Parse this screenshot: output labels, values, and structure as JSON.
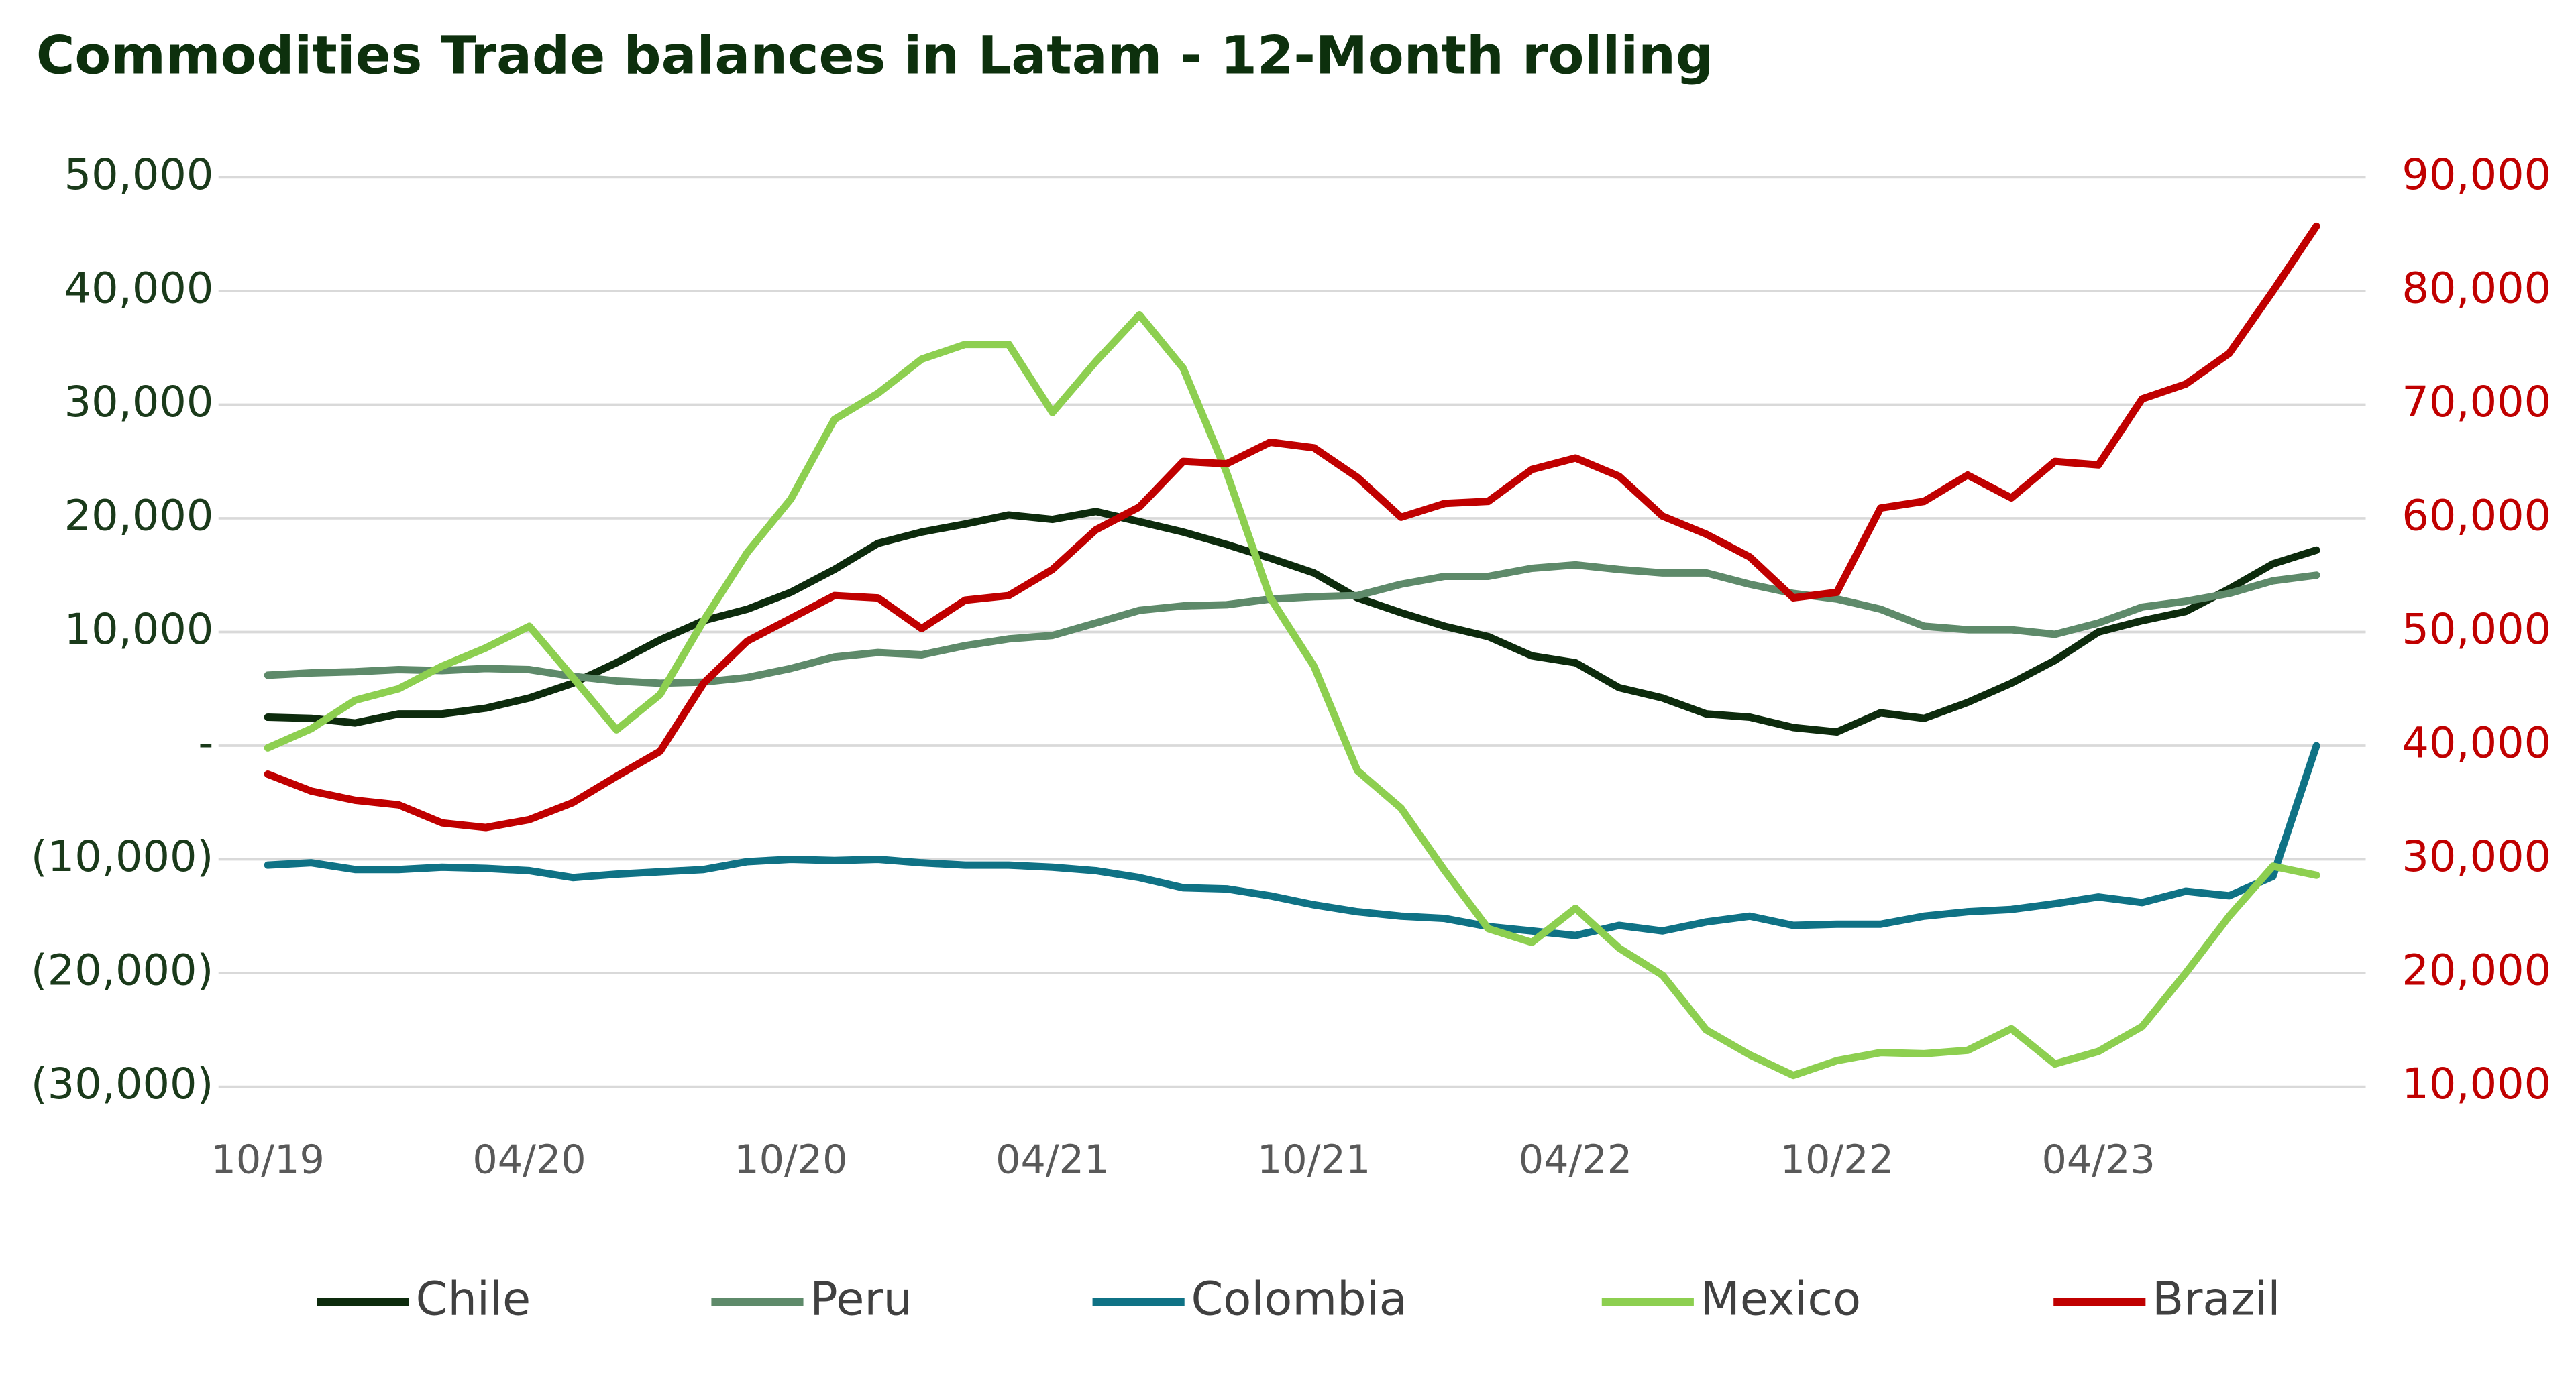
{
  "chart_data": {
    "type": "line",
    "title": "Commodities Trade balances in Latam - 12-Month rolling",
    "categories": [
      "10/19",
      null,
      null,
      null,
      null,
      null,
      "04/20",
      null,
      null,
      null,
      null,
      null,
      "10/20",
      null,
      null,
      null,
      null,
      null,
      "04/21",
      null,
      null,
      null,
      null,
      null,
      "10/21",
      null,
      null,
      null,
      null,
      null,
      "04/22",
      null,
      null,
      null,
      null,
      null,
      "10/22",
      null,
      null,
      null,
      null,
      null,
      "04/23",
      null,
      null,
      null,
      null,
      null
    ],
    "ylim": [
      -30000,
      50000
    ],
    "yticks": [
      {
        "value": -30000,
        "label": "(30,000)"
      },
      {
        "value": -20000,
        "label": "(20,000)"
      },
      {
        "value": -10000,
        "label": "(10,000)"
      },
      {
        "value": 0,
        "label": "-"
      },
      {
        "value": 10000,
        "label": "10,000"
      },
      {
        "value": 20000,
        "label": "20,000"
      },
      {
        "value": 30000,
        "label": "30,000"
      },
      {
        "value": 40000,
        "label": "40,000"
      },
      {
        "value": 50000,
        "label": "50,000"
      }
    ],
    "y2lim": [
      10000,
      90000
    ],
    "y2ticks": [
      {
        "value": 10000,
        "label": "10,000"
      },
      {
        "value": 20000,
        "label": "20,000"
      },
      {
        "value": 30000,
        "label": "30,000"
      },
      {
        "value": 40000,
        "label": "40,000"
      },
      {
        "value": 50000,
        "label": "50,000"
      },
      {
        "value": 60000,
        "label": "60,000"
      },
      {
        "value": 70000,
        "label": "70,000"
      },
      {
        "value": 80000,
        "label": "80,000"
      },
      {
        "value": 90000,
        "label": "90,000"
      }
    ],
    "grid": true,
    "legend": "bottom",
    "series": [
      {
        "name": "Chile",
        "color": "#0d2b0d",
        "values": [
          2500,
          2400,
          2000,
          2800,
          2800,
          3300,
          4200,
          5500,
          7300,
          9300,
          11000,
          12000,
          13500,
          15500,
          17800,
          18800,
          19500,
          20300,
          19900,
          20600,
          19700,
          18800,
          17700,
          16500,
          15200,
          13000,
          11700,
          10500,
          9600,
          7900,
          7300,
          5100,
          4200,
          2800,
          2500,
          1600,
          1200,
          2900,
          2400,
          3800,
          5500,
          7500,
          10000,
          11000,
          11800,
          13800,
          16000,
          17200
        ]
      },
      {
        "name": "Peru",
        "color": "#5e8a6a",
        "values": [
          6200,
          6400,
          6500,
          6700,
          6600,
          6800,
          6700,
          6100,
          5700,
          5500,
          5600,
          6000,
          6800,
          7800,
          8200,
          8000,
          8800,
          9400,
          9700,
          10800,
          11900,
          12300,
          12400,
          12900,
          13100,
          13200,
          14200,
          14900,
          14900,
          15600,
          15900,
          15500,
          15200,
          15200,
          14200,
          13400,
          12900,
          12000,
          10500,
          10200,
          10200,
          9800,
          10800,
          12200,
          12700,
          13400,
          14500,
          15000
        ]
      },
      {
        "name": "Colombia",
        "color": "#0f7285",
        "values": [
          -10500,
          -10300,
          -10900,
          -10900,
          -10700,
          -10800,
          -11000,
          -11600,
          -11300,
          -11100,
          -10900,
          -10200,
          -10000,
          -10100,
          -10000,
          -10300,
          -10500,
          -10500,
          -10700,
          -11000,
          -11600,
          -12500,
          -12600,
          -13200,
          -14000,
          -14600,
          -15000,
          -15200,
          -15900,
          -16300,
          -16700,
          -15800,
          -16300,
          -15500,
          -15000,
          -15800,
          -15700,
          -15700,
          -15000,
          -14600,
          -14400,
          -13900,
          -13300,
          -13800,
          -12800,
          -13200,
          -11500,
          0
        ]
      },
      {
        "name": "Mexico",
        "color": "#8dcf50",
        "values": [
          -200,
          1500,
          4000,
          5000,
          7000,
          8600,
          10500,
          6000,
          1400,
          4500,
          11000,
          17000,
          21700,
          28700,
          31000,
          34000,
          35300,
          35300,
          29300,
          33800,
          37900,
          33200,
          24000,
          13000,
          7000,
          -2200,
          -5500,
          -11000,
          -16100,
          -17300,
          -14300,
          -17800,
          -20200,
          -25000,
          -27200,
          -29000,
          -27700,
          -27000,
          -27100,
          -26800,
          -24900,
          -28000,
          -26900,
          -24700,
          -20000,
          -15000,
          -10600,
          -11400
        ]
      },
      {
        "name": "Brazil",
        "color": "#c00000",
        "axis": "y2",
        "values": [
          37500,
          36000,
          35200,
          34800,
          33200,
          32800,
          33500,
          35000,
          37300,
          39500,
          45500,
          49200,
          51200,
          53200,
          53000,
          50300,
          52800,
          53200,
          55500,
          59000,
          61000,
          65000,
          64800,
          66700,
          66200,
          63600,
          60100,
          61300,
          61500,
          64300,
          65300,
          63700,
          60200,
          58600,
          56600,
          53000,
          53500,
          60900,
          61500,
          63800,
          61800,
          65000,
          64700,
          70500,
          71800,
          74500,
          80000,
          85700
        ]
      }
    ]
  }
}
